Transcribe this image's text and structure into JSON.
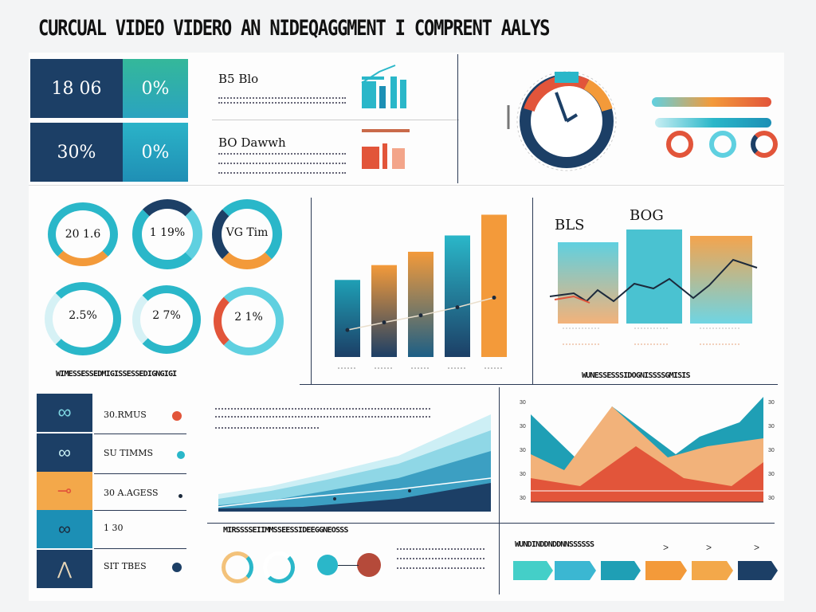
{
  "page": {
    "title": "CURCUAL VIDEO VIDERO AN NIDEQAGGMENT I COMPRENT AALYS"
  },
  "kpis": [
    {
      "label": "18 06",
      "color": "#1c3f66"
    },
    {
      "label": "0%",
      "color": "#2bb3a0"
    },
    {
      "label": "30%",
      "color": "#1c3f66"
    },
    {
      "label": "0%",
      "color": "#2aa3c0"
    }
  ],
  "top_mid": {
    "label_a": "B5 Blo",
    "label_b": "BO Dawwh"
  },
  "rings_top": [
    {
      "label": "20 1.6"
    },
    {
      "label": "1 19%"
    },
    {
      "label": "VG Tim"
    }
  ],
  "rings_bottom": [
    {
      "label": "2.5%"
    },
    {
      "label": "2 7%"
    },
    {
      "label": "2 1%"
    }
  ],
  "captions": {
    "rings": "WIMESSESSEDMIGISSESSEDIGNGIGI",
    "bars_right": "WUNESSESSSIDOGNISSSSGMISIS",
    "area": "MIRSSSSEIIMMSSEESSIDEEGGNEOSSS",
    "flow": "WUNDINDDNDDNNSSSSSS"
  },
  "bar_labels": {
    "left": "BLS",
    "right": "BOG"
  },
  "rows": [
    {
      "label": "30.RMUS",
      "icon": "link-icon"
    },
    {
      "label": "SU TIMMS",
      "icon": "mask-icon"
    },
    {
      "label": "30 A.AGESS",
      "icon": "key-icon"
    },
    {
      "label": "1 30",
      "icon": "chain-icon"
    },
    {
      "label": "SIT TBES",
      "icon": "bird-icon"
    }
  ],
  "right_area_ticks_left": [
    "30",
    "30",
    "30",
    "30",
    "30"
  ],
  "right_area_ticks_right": [
    "30",
    "30",
    "30",
    "30",
    "30"
  ],
  "gauge": {
    "level": 0.72
  },
  "chart_data": {
    "type": "bar",
    "categories": [
      "",
      "",
      "",
      "",
      ""
    ],
    "values": [
      52,
      62,
      71,
      82,
      96
    ],
    "ylim": [
      0,
      100
    ],
    "title": "",
    "xlabel": "",
    "ylabel": ""
  },
  "colors": {
    "navy": "#1c3f66",
    "teal": "#2ab7c9",
    "orange": "#f39a3a",
    "red": "#e2553a",
    "aqua": "#5fd0e0"
  }
}
